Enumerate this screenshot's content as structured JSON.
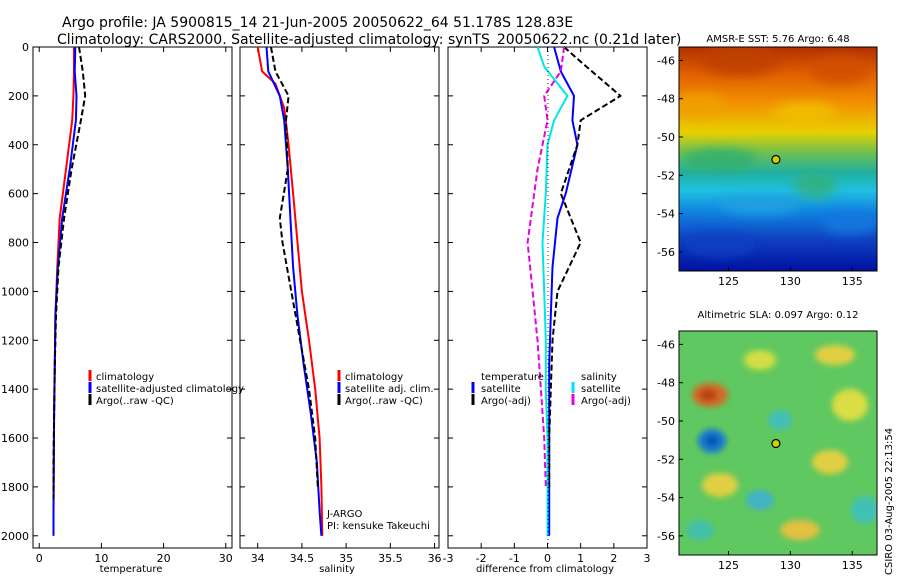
{
  "title": {
    "line1": "Argo profile: JA 5900815_14 21-Jun-2005 20050622_64 51.178S 128.83E",
    "line2": "Climatology: CARS2000. Satellite-adjusted climatology: synTS_20050622.nc (0.21d later)"
  },
  "side_label": "CSIRO 03-Aug-2005 22:13:54",
  "colors": {
    "red": "#ff0000",
    "blue": "#0000ff",
    "black": "#000000",
    "cyan": "#00e5e5",
    "magenta": "#e600e6"
  },
  "chart_data": [
    {
      "type": "line",
      "panel": "temperature",
      "xlabel": "temperature",
      "ylabel": "",
      "xlim": [
        -1,
        31
      ],
      "ylim": [
        0,
        2050
      ],
      "y_reversed": true,
      "xticks": [
        0,
        10,
        20,
        30
      ],
      "yticks": [
        0,
        200,
        400,
        600,
        800,
        1000,
        1200,
        1400,
        1600,
        1800,
        2000
      ],
      "legend": {
        "position": "lower-right",
        "entries": [
          "climatology",
          "satellite-adjusted climatology",
          "Argo(..raw -QC)"
        ]
      },
      "series": [
        {
          "name": "climatology",
          "color": "#ff0000",
          "dash": "",
          "x": [
            5.6,
            5.6,
            5.5,
            5.3,
            4.3,
            3.3,
            2.9,
            2.6,
            2.5,
            2.4,
            2.35,
            2.3,
            2.3
          ],
          "y": [
            0,
            100,
            200,
            300,
            500,
            700,
            900,
            1100,
            1300,
            1500,
            1700,
            1900,
            2000
          ]
        },
        {
          "name": "satellite-adjusted climatology",
          "color": "#0000ff",
          "dash": "",
          "x": [
            5.8,
            5.7,
            6.0,
            5.9,
            4.9,
            3.7,
            3.0,
            2.6,
            2.5,
            2.4,
            2.35,
            2.3,
            2.3
          ],
          "y": [
            0,
            100,
            200,
            300,
            500,
            700,
            900,
            1100,
            1300,
            1500,
            1700,
            1900,
            2000
          ]
        },
        {
          "name": "Argo(..raw -QC)",
          "color": "#000000",
          "dash": "6,3",
          "x": [
            6.4,
            7.0,
            7.4,
            6.7,
            5.2,
            4.0,
            3.1,
            2.7,
            2.5,
            2.4,
            2.3,
            2.3
          ],
          "y": [
            0,
            100,
            200,
            300,
            500,
            700,
            900,
            1100,
            1300,
            1500,
            1700,
            1850
          ]
        }
      ]
    },
    {
      "type": "line",
      "panel": "salinity",
      "xlabel": "salinity",
      "ylabel": "",
      "xlim": [
        33.8,
        36.05
      ],
      "ylim": [
        0,
        2050
      ],
      "y_reversed": true,
      "xticks": [
        34,
        34.5,
        35,
        35.5,
        36
      ],
      "legend": {
        "position": "lower-middle",
        "entries": [
          "climatology",
          "satellite adj. clim.",
          "Argo(..raw -QC)"
        ]
      },
      "annotation": {
        "line1": "J-ARGO",
        "line2": "PI: kensuke Takeuchi"
      },
      "series": [
        {
          "name": "climatology",
          "color": "#ff0000",
          "dash": "",
          "x": [
            34.0,
            34.05,
            34.2,
            34.3,
            34.35,
            34.4,
            34.45,
            34.5,
            34.58,
            34.65,
            34.7,
            34.72,
            34.73
          ],
          "y": [
            0,
            100,
            150,
            250,
            400,
            600,
            800,
            1000,
            1200,
            1400,
            1600,
            1800,
            2000
          ]
        },
        {
          "name": "satellite adj. clim.",
          "color": "#0000ff",
          "dash": "",
          "x": [
            34.1,
            34.12,
            34.25,
            34.3,
            34.34,
            34.37,
            34.4,
            34.45,
            34.52,
            34.6,
            34.67,
            34.7,
            34.72
          ],
          "y": [
            0,
            100,
            200,
            300,
            500,
            700,
            900,
            1100,
            1300,
            1500,
            1700,
            1900,
            2000
          ]
        },
        {
          "name": "Argo(..raw -QC)",
          "color": "#000000",
          "dash": "6,3",
          "x": [
            34.15,
            34.2,
            34.35,
            34.32,
            34.34,
            34.25,
            34.28,
            34.38,
            34.48,
            34.58,
            34.65,
            34.68
          ],
          "y": [
            0,
            100,
            200,
            300,
            500,
            700,
            800,
            1000,
            1200,
            1400,
            1600,
            1800
          ]
        }
      ]
    },
    {
      "type": "line",
      "panel": "difference",
      "xlabel": "difference from climatology",
      "ylabel": "",
      "xlim": [
        -3,
        3
      ],
      "ylim": [
        0,
        2050
      ],
      "y_reversed": true,
      "xticks": [
        -3,
        -2,
        -1,
        0,
        1,
        2,
        3
      ],
      "legend": {
        "position": "lower-middle",
        "groups": [
          [
            "temperature",
            "satellite",
            "Argo(-adj)"
          ],
          [
            "salinity",
            "satellite",
            "Argo(-adj)"
          ]
        ]
      },
      "series": [
        {
          "name": "temperature satellite",
          "color": "#0000ff",
          "dash": "",
          "x": [
            0.2,
            0.4,
            0.8,
            0.75,
            0.9,
            0.55,
            0.3,
            0.15,
            0.1,
            0.05,
            0.05,
            0.05,
            0.05
          ],
          "y": [
            0,
            100,
            200,
            300,
            400,
            600,
            700,
            900,
            1100,
            1300,
            1500,
            1700,
            2000
          ]
        },
        {
          "name": "temperature Argo(-adj)",
          "color": "#000000",
          "dash": "6,3",
          "x": [
            0.5,
            1.0,
            2.2,
            1.0,
            0.9,
            0.4,
            1.0,
            0.3,
            0.15,
            0.1,
            0.05,
            0.05
          ],
          "y": [
            0,
            60,
            200,
            300,
            400,
            600,
            800,
            1000,
            1200,
            1400,
            1600,
            1800
          ]
        },
        {
          "name": "salinity satellite",
          "color": "#00e5e5",
          "dash": "",
          "x": [
            -0.3,
            -0.1,
            0.6,
            0.2,
            0.0,
            -0.05,
            -0.15,
            -0.1,
            -0.05,
            -0.05,
            0.0,
            0.0,
            0.0
          ],
          "y": [
            0,
            80,
            200,
            300,
            400,
            600,
            800,
            1000,
            1200,
            1400,
            1600,
            1800,
            2000
          ]
        },
        {
          "name": "salinity Argo(-adj)",
          "color": "#e600e6",
          "dash": "6,3",
          "x": [
            0.5,
            0.4,
            -0.1,
            0.0,
            -0.3,
            -0.5,
            -0.6,
            -0.45,
            -0.3,
            -0.2,
            -0.1,
            -0.05
          ],
          "y": [
            0,
            100,
            200,
            300,
            500,
            700,
            800,
            1000,
            1200,
            1400,
            1600,
            1800
          ]
        }
      ]
    },
    {
      "type": "heatmap",
      "panel": "sst_map",
      "title": "AMSR-E SST: 5.76 Argo: 6.48",
      "xlim": [
        121,
        137
      ],
      "ylim": [
        -57,
        -45.3
      ],
      "xticks": [
        125,
        130,
        135
      ],
      "yticks": [
        -46,
        -48,
        -50,
        -52,
        -54,
        -56
      ],
      "marker": {
        "lon": 128.83,
        "lat": -51.178
      }
    },
    {
      "type": "heatmap",
      "panel": "sla_map",
      "title": "Altimetric SLA: 0.097 Argo: 0.12",
      "xlim": [
        121,
        137
      ],
      "ylim": [
        -57,
        -45.3
      ],
      "xticks": [
        125,
        130,
        135
      ],
      "yticks": [
        -46,
        -48,
        -50,
        -52,
        -54,
        -56
      ],
      "marker": {
        "lon": 128.83,
        "lat": -51.178
      }
    }
  ]
}
